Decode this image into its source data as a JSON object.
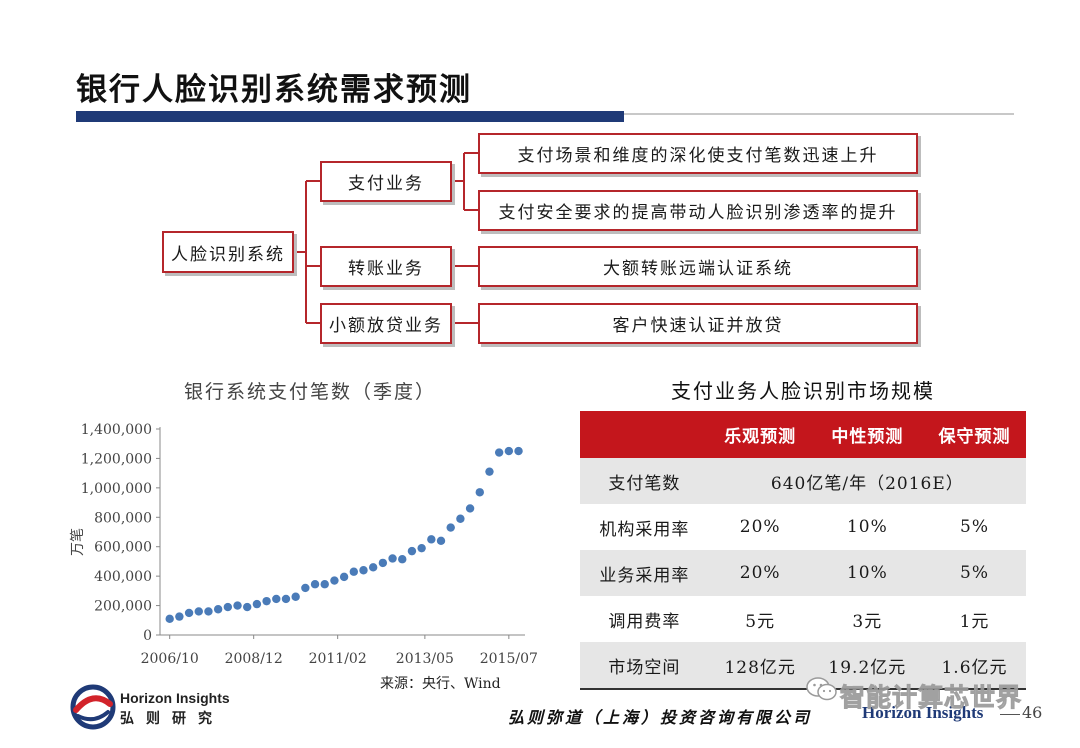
{
  "slide": {
    "title": "银行人脸识别系统需求预测",
    "page_number": "46"
  },
  "tree": {
    "root": "人脸识别系统",
    "branches": [
      {
        "label": "支付业务",
        "leaves": [
          "支付场景和维度的深化使支付笔数迅速上升",
          "支付安全要求的提高带动人脸识别渗透率的提升"
        ]
      },
      {
        "label": "转账业务",
        "leaves": [
          "大额转账远端认证系统"
        ]
      },
      {
        "label": "小额放贷业务",
        "leaves": [
          "客户快速认证并放贷"
        ]
      }
    ]
  },
  "chart": {
    "title": "银行系统支付笔数（季度）",
    "source": "来源：央行、Wind"
  },
  "chart_data": {
    "type": "scatter",
    "title": "银行系统支付笔数（季度）",
    "xlabel": "",
    "ylabel": "万笔",
    "ylim": [
      0,
      1400000
    ],
    "yticks": [
      "0",
      "200,000",
      "400,000",
      "600,000",
      "800,000",
      "1,000,000",
      "1,200,000",
      "1,400,000"
    ],
    "xticks": [
      "2006/10",
      "2008/12",
      "2011/02",
      "2013/05",
      "2015/07"
    ],
    "x": [
      "2006/10",
      "2007/01",
      "2007/04",
      "2007/07",
      "2007/10",
      "2008/01",
      "2008/04",
      "2008/07",
      "2008/10",
      "2009/01",
      "2009/04",
      "2009/07",
      "2009/10",
      "2010/01",
      "2010/04",
      "2010/07",
      "2010/10",
      "2011/01",
      "2011/04",
      "2011/07",
      "2011/10",
      "2012/01",
      "2012/04",
      "2012/07",
      "2012/10",
      "2013/01",
      "2013/04",
      "2013/07",
      "2013/10",
      "2014/01",
      "2014/04",
      "2014/07",
      "2014/10",
      "2015/01",
      "2015/04",
      "2015/07",
      "2015/10"
    ],
    "values": [
      110000,
      125000,
      150000,
      160000,
      160000,
      175000,
      190000,
      200000,
      190000,
      210000,
      230000,
      245000,
      245000,
      260000,
      320000,
      345000,
      345000,
      370000,
      395000,
      430000,
      440000,
      460000,
      490000,
      520000,
      515000,
      570000,
      590000,
      650000,
      640000,
      730000,
      790000,
      860000,
      970000,
      1110000,
      1240000,
      1250000,
      1250000
    ],
    "grid": false,
    "legend": "none",
    "color": "#4a7bb8"
  },
  "table": {
    "title": "支付业务人脸识别市场规模",
    "headers": [
      "",
      "乐观预测",
      "中性预测",
      "保守预测"
    ],
    "rows": [
      {
        "label": "支付笔数",
        "merged": "640亿笔/年（2016E）"
      },
      {
        "label": "机构采用率",
        "cells": [
          "20%",
          "10%",
          "5%"
        ]
      },
      {
        "label": "业务采用率",
        "cells": [
          "20%",
          "10%",
          "5%"
        ]
      },
      {
        "label": "调用费率",
        "cells": [
          "5元",
          "3元",
          "1元"
        ]
      },
      {
        "label": "市场空间",
        "cells": [
          "128亿元",
          "19.2亿元",
          "1.6亿元"
        ]
      }
    ]
  },
  "footer": {
    "logo_en": "Horizon Insights",
    "logo_cn": "弘则研究",
    "company": "弘则弥道（上海）投资咨询有限公司",
    "brand": "Horizon Insights",
    "watermark": "智能计算芯世界"
  },
  "colors": {
    "accent_red": "#c4161c",
    "title_bar_blue": "#1f3a77",
    "box_border": "#b5262b",
    "dot_blue": "#4a7bb8"
  }
}
